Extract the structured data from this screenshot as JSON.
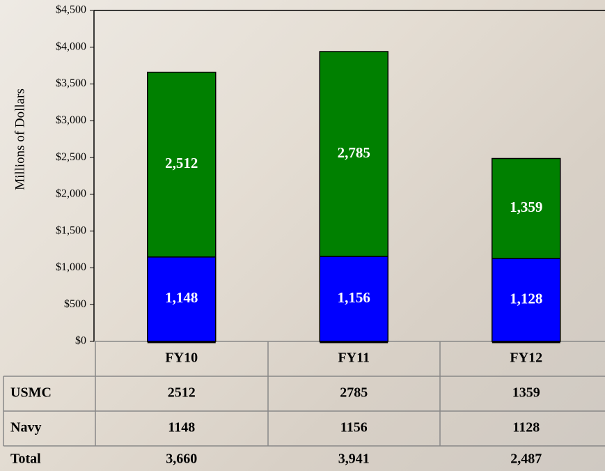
{
  "chart_data": {
    "type": "stacked_bar",
    "y_label": "Millions of Dollars",
    "categories": [
      "FY10",
      "FY11",
      "FY12"
    ],
    "series": [
      {
        "name": "Navy",
        "color": "#0000ff",
        "values": [
          1148,
          1156,
          1128
        ],
        "value_labels": [
          "1,148",
          "1,156",
          "1,128"
        ]
      },
      {
        "name": "USMC",
        "color": "#008000",
        "values": [
          2512,
          2785,
          1359
        ],
        "value_labels": [
          "2,512",
          "2,785",
          "1,359"
        ]
      }
    ],
    "ylim": [
      0,
      4500
    ],
    "yticks": [
      {
        "value": 0,
        "label": "$0"
      },
      {
        "value": 500,
        "label": "$500"
      },
      {
        "value": 1000,
        "label": "$1,000"
      },
      {
        "value": 1500,
        "label": "$1,500"
      },
      {
        "value": 2000,
        "label": "$2,000"
      },
      {
        "value": 2500,
        "label": "$2,500"
      },
      {
        "value": 3000,
        "label": "$3,000"
      },
      {
        "value": 3500,
        "label": "$3,500"
      },
      {
        "value": 4000,
        "label": "$4,000"
      },
      {
        "value": 4500,
        "label": "$4,500"
      }
    ],
    "table": {
      "total_label": "Total",
      "totals": [
        "3,660",
        "3,941",
        "2,487"
      ]
    }
  }
}
